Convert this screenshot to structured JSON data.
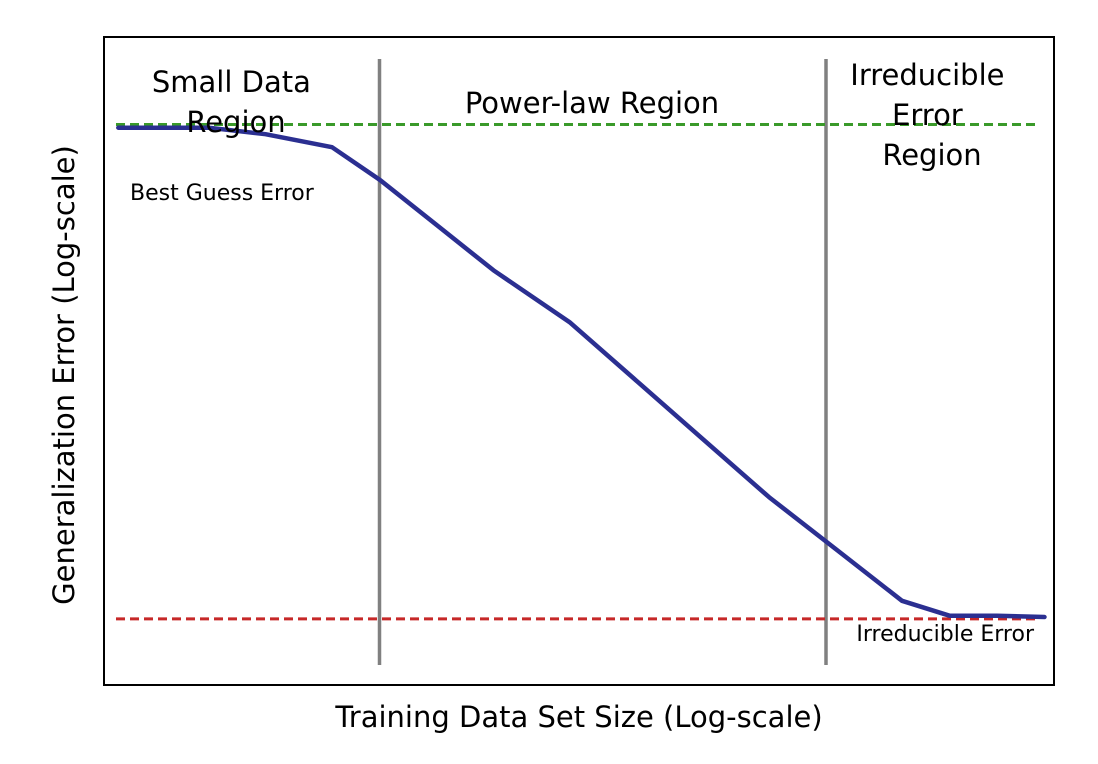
{
  "chart_data": {
    "type": "line",
    "title": "",
    "xlabel": "Training Data Set Size (Log-scale)",
    "ylabel": "Generalization Error (Log-scale)",
    "x_scale": "log",
    "y_scale": "log",
    "ticks_shown": false,
    "grid": false,
    "xlim": [
      0,
      100
    ],
    "ylim": [
      0,
      100
    ],
    "series": [
      {
        "color": "#2b2f91",
        "x": [
          1.5,
          11,
          17,
          24,
          29,
          35,
          41,
          49,
          56,
          63,
          70,
          77,
          84,
          89,
          94,
          99
        ],
        "y": [
          86,
          86,
          85,
          83,
          78,
          71,
          64,
          56,
          47,
          38,
          29,
          21,
          13,
          10.7,
          10.7,
          10.5
        ]
      }
    ],
    "reference_lines": [
      {
        "id": "best-guess",
        "orientation": "horizontal",
        "value": 86.5,
        "style": "dashed",
        "color": "#3a9a2a",
        "label": "Best Guess Error"
      },
      {
        "id": "irreducible",
        "orientation": "horizontal",
        "value": 10.2,
        "style": "dashed",
        "color": "#c62828",
        "label": "Irreducible Error"
      }
    ],
    "boundaries": [
      {
        "value": 29,
        "color": "#808080"
      },
      {
        "value": 76,
        "color": "#808080"
      }
    ],
    "regions": [
      {
        "label": [
          "Small Data",
          "Region"
        ]
      },
      {
        "label": [
          "Power-law Region"
        ]
      },
      {
        "label": [
          "Irreducible",
          "Error",
          "Region"
        ]
      }
    ]
  }
}
